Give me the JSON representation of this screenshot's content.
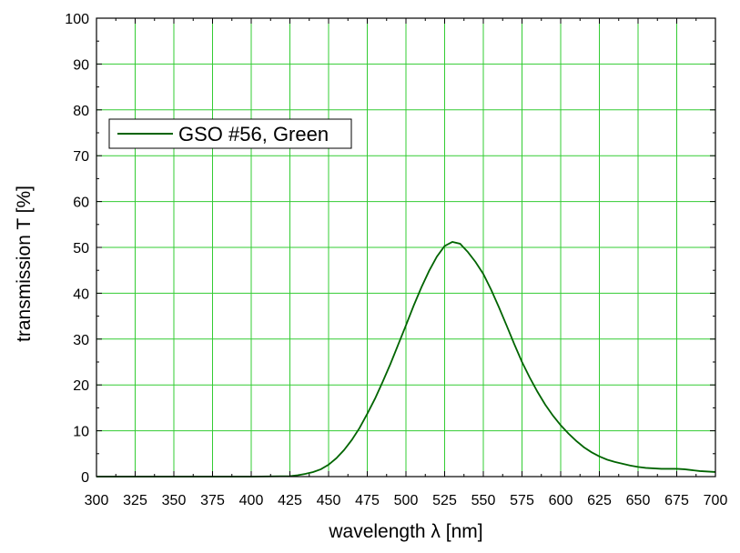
{
  "chart_data": {
    "type": "line",
    "title": "",
    "xlabel": "wavelength λ [nm]",
    "ylabel": "transmission T [%]",
    "xlim": [
      300,
      700
    ],
    "ylim": [
      0,
      100
    ],
    "xticks": [
      300,
      325,
      350,
      375,
      400,
      425,
      450,
      475,
      500,
      525,
      550,
      575,
      600,
      625,
      650,
      675,
      700
    ],
    "yticks": [
      0,
      10,
      20,
      30,
      40,
      50,
      60,
      70,
      80,
      90,
      100
    ],
    "grid": true,
    "grid_color": "#33cc33",
    "legend_position": "top-left",
    "series": [
      {
        "name": "GSO #56, Green",
        "color": "#006400",
        "x": [
          300,
          400,
          425,
          430,
          435,
          440,
          445,
          450,
          455,
          460,
          465,
          470,
          475,
          480,
          485,
          490,
          495,
          500,
          505,
          510,
          515,
          520,
          525,
          530,
          535,
          540,
          545,
          550,
          555,
          560,
          565,
          570,
          575,
          580,
          585,
          590,
          595,
          600,
          605,
          610,
          615,
          620,
          625,
          630,
          635,
          640,
          645,
          650,
          655,
          660,
          665,
          670,
          675,
          680,
          685,
          690,
          695,
          700
        ],
        "y": [
          0,
          0,
          0.1,
          0.3,
          0.6,
          1.0,
          1.6,
          2.6,
          4.0,
          5.8,
          8.0,
          10.6,
          13.7,
          17.0,
          20.7,
          24.6,
          28.8,
          33.0,
          37.3,
          41.3,
          44.9,
          48.0,
          50.3,
          51.2,
          50.8,
          49.0,
          46.8,
          44.2,
          40.8,
          37.0,
          33.0,
          28.9,
          25.0,
          21.6,
          18.5,
          15.7,
          13.3,
          11.2,
          9.4,
          7.8,
          6.4,
          5.3,
          4.4,
          3.7,
          3.2,
          2.8,
          2.4,
          2.1,
          1.9,
          1.8,
          1.7,
          1.7,
          1.7,
          1.6,
          1.4,
          1.2,
          1.1,
          1.0
        ]
      }
    ]
  }
}
